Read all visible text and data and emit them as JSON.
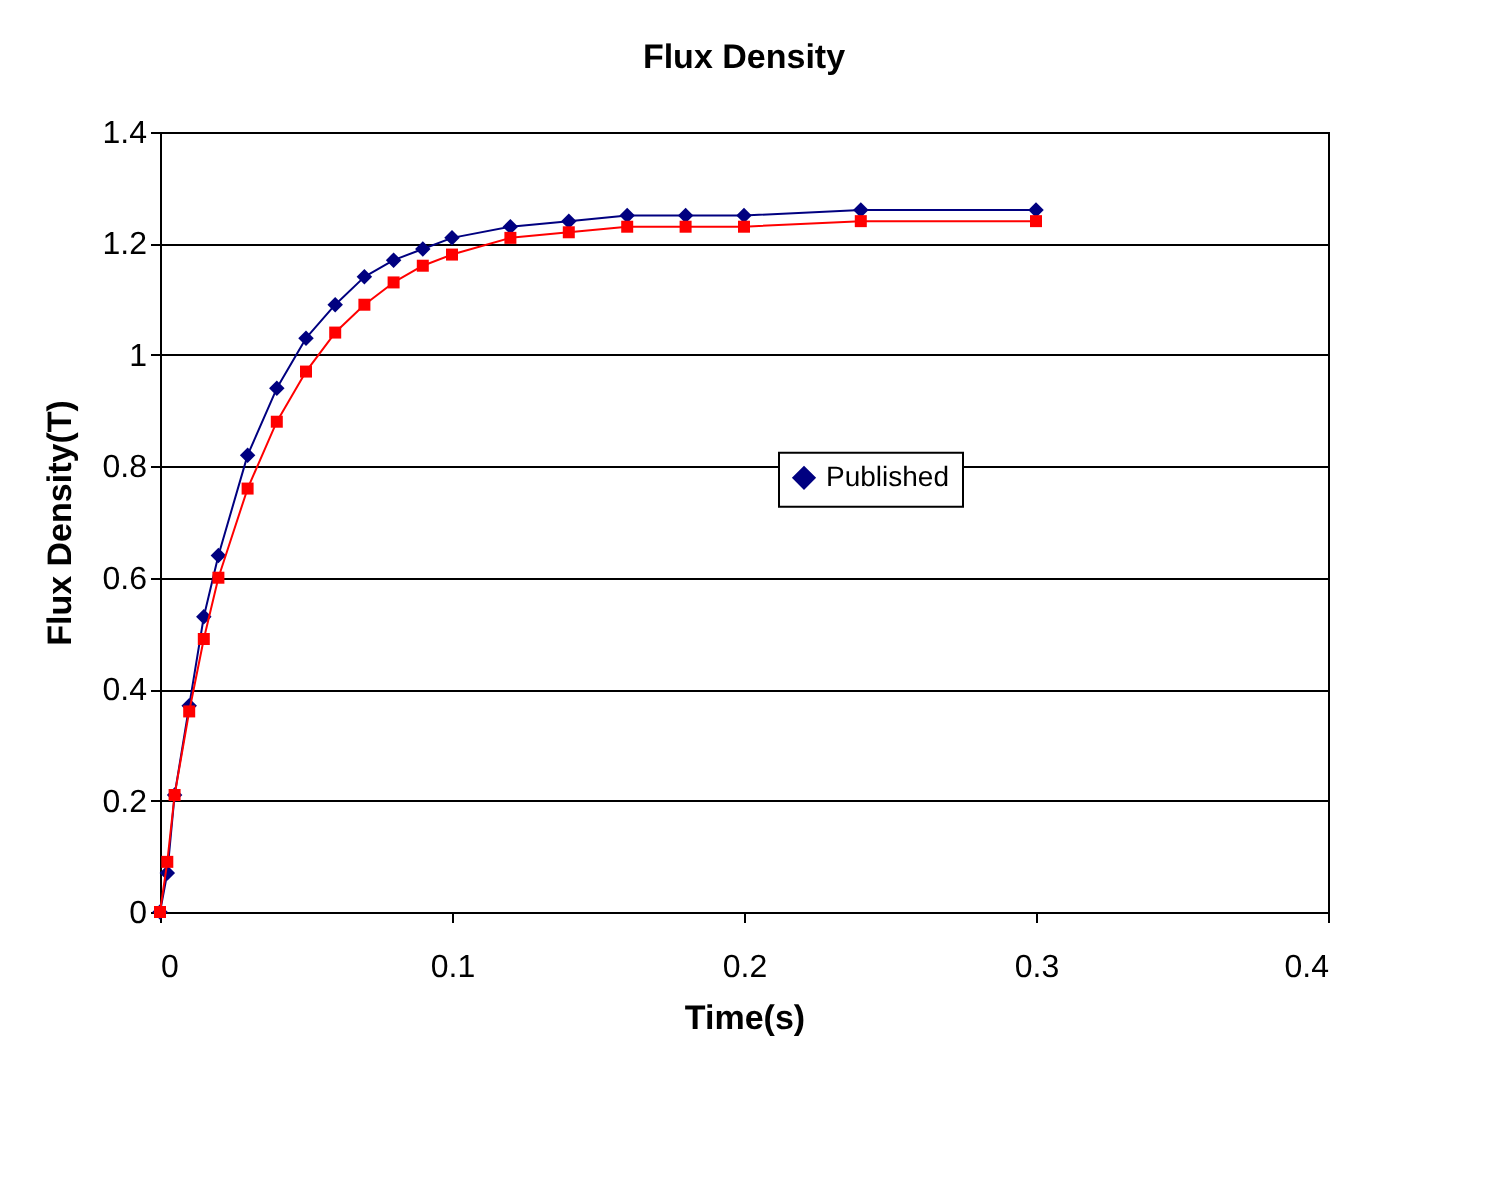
{
  "chart_data": {
    "type": "line",
    "title": "Flux Density",
    "xlabel": "Time(s)",
    "ylabel": "Flux Density(T)",
    "x": [
      0,
      0.0025,
      0.005,
      0.01,
      0.015,
      0.02,
      0.03,
      0.04,
      0.05,
      0.06,
      0.07,
      0.08,
      0.09,
      0.1,
      0.12,
      0.14,
      0.16,
      0.18,
      0.2,
      0.24,
      0.3
    ],
    "series": [
      {
        "name": "Published",
        "color": "#000080",
        "marker": "diamond",
        "values": [
          0,
          0.07,
          0.21,
          0.37,
          0.53,
          0.64,
          0.82,
          0.94,
          1.03,
          1.09,
          1.14,
          1.17,
          1.19,
          1.21,
          1.23,
          1.24,
          1.25,
          1.25,
          1.25,
          1.26,
          1.26
        ]
      },
      {
        "color": "#ff0000",
        "marker": "square",
        "values": [
          0,
          0.09,
          0.21,
          0.36,
          0.49,
          0.6,
          0.76,
          0.88,
          0.97,
          1.04,
          1.09,
          1.13,
          1.16,
          1.18,
          1.21,
          1.22,
          1.23,
          1.23,
          1.23,
          1.24,
          1.24
        ]
      }
    ],
    "xlim": [
      0,
      0.4
    ],
    "xticks": [
      0,
      0.1,
      0.2,
      0.3,
      0.4
    ],
    "ylim": [
      0,
      1.4
    ],
    "yticks": [
      0,
      0.2,
      0.4,
      0.6,
      0.8,
      1,
      1.2,
      1.4
    ],
    "grid": "y",
    "legend": "right",
    "line_style": "solid"
  }
}
